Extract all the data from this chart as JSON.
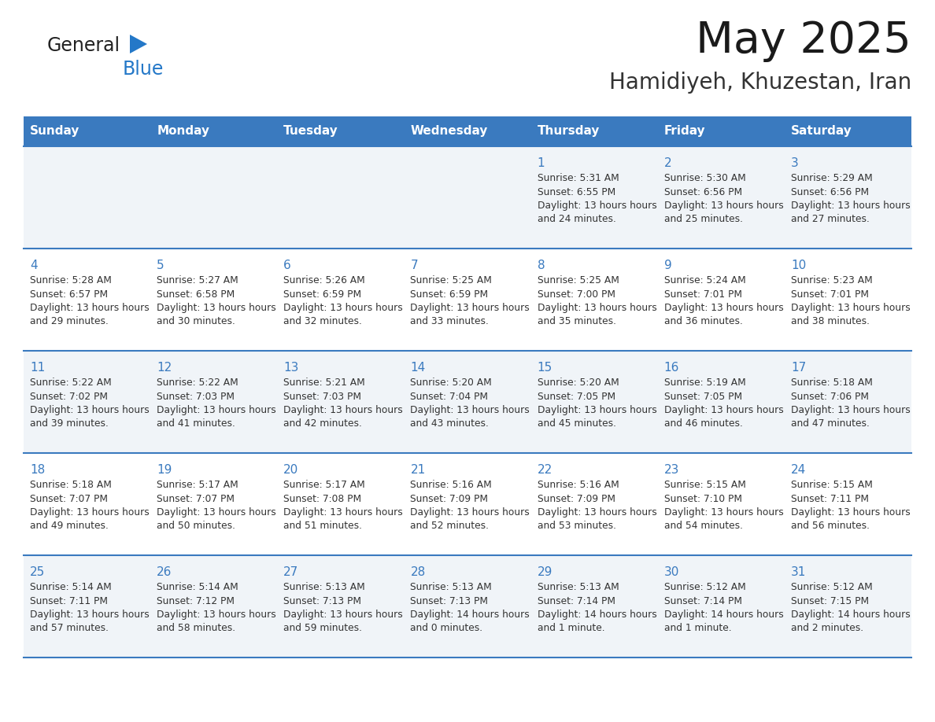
{
  "title": "May 2025",
  "subtitle": "Hamidiyeh, Khuzestan, Iran",
  "days_of_week": [
    "Sunday",
    "Monday",
    "Tuesday",
    "Wednesday",
    "Thursday",
    "Friday",
    "Saturday"
  ],
  "header_bg": "#3a7abf",
  "header_text_color": "#ffffff",
  "row_bg_even": "#f0f4f8",
  "row_bg_odd": "#ffffff",
  "cell_text_color": "#333333",
  "day_num_color": "#3a7abf",
  "divider_color": "#3a7abf",
  "logo_general_color": "#222222",
  "logo_blue_color": "#2478c8",
  "calendar_data": [
    [
      {
        "day": "",
        "sunrise": "",
        "sunset": "",
        "daylight": ""
      },
      {
        "day": "",
        "sunrise": "",
        "sunset": "",
        "daylight": ""
      },
      {
        "day": "",
        "sunrise": "",
        "sunset": "",
        "daylight": ""
      },
      {
        "day": "",
        "sunrise": "",
        "sunset": "",
        "daylight": ""
      },
      {
        "day": "1",
        "sunrise": "5:31 AM",
        "sunset": "6:55 PM",
        "daylight": "13 hours and 24 minutes."
      },
      {
        "day": "2",
        "sunrise": "5:30 AM",
        "sunset": "6:56 PM",
        "daylight": "13 hours and 25 minutes."
      },
      {
        "day": "3",
        "sunrise": "5:29 AM",
        "sunset": "6:56 PM",
        "daylight": "13 hours and 27 minutes."
      }
    ],
    [
      {
        "day": "4",
        "sunrise": "5:28 AM",
        "sunset": "6:57 PM",
        "daylight": "13 hours and 29 minutes."
      },
      {
        "day": "5",
        "sunrise": "5:27 AM",
        "sunset": "6:58 PM",
        "daylight": "13 hours and 30 minutes."
      },
      {
        "day": "6",
        "sunrise": "5:26 AM",
        "sunset": "6:59 PM",
        "daylight": "13 hours and 32 minutes."
      },
      {
        "day": "7",
        "sunrise": "5:25 AM",
        "sunset": "6:59 PM",
        "daylight": "13 hours and 33 minutes."
      },
      {
        "day": "8",
        "sunrise": "5:25 AM",
        "sunset": "7:00 PM",
        "daylight": "13 hours and 35 minutes."
      },
      {
        "day": "9",
        "sunrise": "5:24 AM",
        "sunset": "7:01 PM",
        "daylight": "13 hours and 36 minutes."
      },
      {
        "day": "10",
        "sunrise": "5:23 AM",
        "sunset": "7:01 PM",
        "daylight": "13 hours and 38 minutes."
      }
    ],
    [
      {
        "day": "11",
        "sunrise": "5:22 AM",
        "sunset": "7:02 PM",
        "daylight": "13 hours and 39 minutes."
      },
      {
        "day": "12",
        "sunrise": "5:22 AM",
        "sunset": "7:03 PM",
        "daylight": "13 hours and 41 minutes."
      },
      {
        "day": "13",
        "sunrise": "5:21 AM",
        "sunset": "7:03 PM",
        "daylight": "13 hours and 42 minutes."
      },
      {
        "day": "14",
        "sunrise": "5:20 AM",
        "sunset": "7:04 PM",
        "daylight": "13 hours and 43 minutes."
      },
      {
        "day": "15",
        "sunrise": "5:20 AM",
        "sunset": "7:05 PM",
        "daylight": "13 hours and 45 minutes."
      },
      {
        "day": "16",
        "sunrise": "5:19 AM",
        "sunset": "7:05 PM",
        "daylight": "13 hours and 46 minutes."
      },
      {
        "day": "17",
        "sunrise": "5:18 AM",
        "sunset": "7:06 PM",
        "daylight": "13 hours and 47 minutes."
      }
    ],
    [
      {
        "day": "18",
        "sunrise": "5:18 AM",
        "sunset": "7:07 PM",
        "daylight": "13 hours and 49 minutes."
      },
      {
        "day": "19",
        "sunrise": "5:17 AM",
        "sunset": "7:07 PM",
        "daylight": "13 hours and 50 minutes."
      },
      {
        "day": "20",
        "sunrise": "5:17 AM",
        "sunset": "7:08 PM",
        "daylight": "13 hours and 51 minutes."
      },
      {
        "day": "21",
        "sunrise": "5:16 AM",
        "sunset": "7:09 PM",
        "daylight": "13 hours and 52 minutes."
      },
      {
        "day": "22",
        "sunrise": "5:16 AM",
        "sunset": "7:09 PM",
        "daylight": "13 hours and 53 minutes."
      },
      {
        "day": "23",
        "sunrise": "5:15 AM",
        "sunset": "7:10 PM",
        "daylight": "13 hours and 54 minutes."
      },
      {
        "day": "24",
        "sunrise": "5:15 AM",
        "sunset": "7:11 PM",
        "daylight": "13 hours and 56 minutes."
      }
    ],
    [
      {
        "day": "25",
        "sunrise": "5:14 AM",
        "sunset": "7:11 PM",
        "daylight": "13 hours and 57 minutes."
      },
      {
        "day": "26",
        "sunrise": "5:14 AM",
        "sunset": "7:12 PM",
        "daylight": "13 hours and 58 minutes."
      },
      {
        "day": "27",
        "sunrise": "5:13 AM",
        "sunset": "7:13 PM",
        "daylight": "13 hours and 59 minutes."
      },
      {
        "day": "28",
        "sunrise": "5:13 AM",
        "sunset": "7:13 PM",
        "daylight": "14 hours and 0 minutes."
      },
      {
        "day": "29",
        "sunrise": "5:13 AM",
        "sunset": "7:14 PM",
        "daylight": "14 hours and 1 minute."
      },
      {
        "day": "30",
        "sunrise": "5:12 AM",
        "sunset": "7:14 PM",
        "daylight": "14 hours and 1 minute."
      },
      {
        "day": "31",
        "sunrise": "5:12 AM",
        "sunset": "7:15 PM",
        "daylight": "14 hours and 2 minutes."
      }
    ]
  ]
}
